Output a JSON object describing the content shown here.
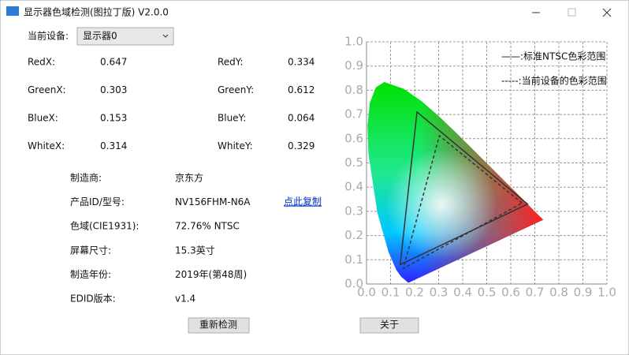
{
  "window": {
    "title": "显示器色域检测(图拉丁版) V2.0.0"
  },
  "device": {
    "label": "当前设备:",
    "selected": "显示器0"
  },
  "fields": [
    {
      "label": "RedX:",
      "value": 0.647
    },
    {
      "label": "RedY:",
      "value": 0.334
    },
    {
      "label": "GreenX:",
      "value": 0.303
    },
    {
      "label": "GreenY:",
      "value": 0.612
    },
    {
      "label": "BlueX:",
      "value": 0.153
    },
    {
      "label": "BlueY:",
      "value": 0.064
    },
    {
      "label": "WhiteX:",
      "value": 0.314
    },
    {
      "label": "WhiteY:",
      "value": 0.329
    }
  ],
  "info": [
    {
      "label": "制造商:",
      "value": "京东方"
    },
    {
      "label": "产品ID/型号:",
      "value": "NV156FHM-N6A"
    },
    {
      "label": "色域(CIE1931):",
      "value": "72.76% NTSC"
    },
    {
      "label": "屏幕尺寸:",
      "value": "15.3英寸"
    },
    {
      "label": "制造年份:",
      "value": "2019年(第48周)"
    },
    {
      "label": "EDID版本:",
      "value": "v1.4"
    }
  ],
  "copy_link": "点此复制",
  "buttons": {
    "redetect": "重新检测",
    "about": "关于"
  },
  "chart_data": {
    "type": "polygon",
    "xlim": [
      0,
      1
    ],
    "ylim": [
      0,
      1
    ],
    "xticks": [
      {
        "value": 0,
        "label": "0.0"
      },
      0.1,
      0.2,
      0.3,
      0.4,
      0.5,
      0.6,
      0.7,
      0.8,
      0.9,
      {
        "value": 1,
        "label": "1.0"
      }
    ],
    "yticks": [
      {
        "value": 0,
        "label": "0.0"
      },
      0.1,
      0.2,
      0.3,
      0.4,
      0.5,
      0.6,
      0.7,
      0.8,
      0.9,
      {
        "value": 1,
        "label": "1.0"
      }
    ],
    "grid": true,
    "legend": "top-right",
    "series": [
      {
        "name": "——:标准NTSC色彩范围",
        "color": "#333333",
        "style": "solid",
        "x": [
          0.67,
          0.21,
          0.14
        ],
        "y": [
          0.33,
          0.71,
          0.08
        ]
      },
      {
        "name": "-----:当前设备的色彩范围",
        "color": "#333333",
        "style": "dashed",
        "x": [
          0.647,
          0.303,
          0.153
        ],
        "y": [
          0.334,
          0.612,
          0.064
        ]
      }
    ]
  }
}
